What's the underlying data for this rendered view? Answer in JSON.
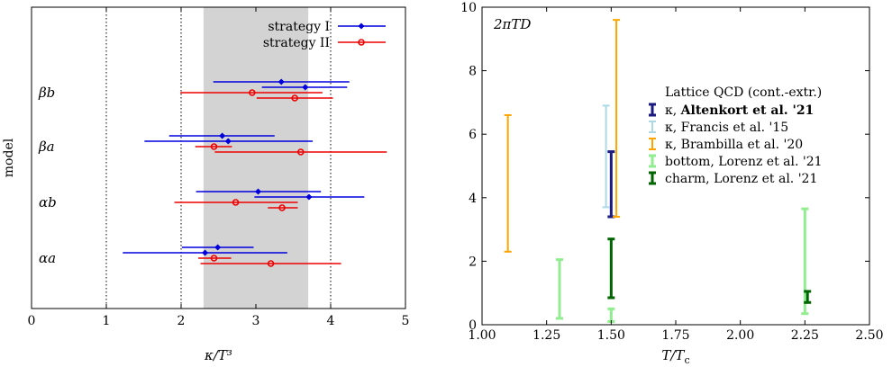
{
  "chart_data": [
    {
      "type": "scatter",
      "title": "",
      "xlabel": "κ/T³",
      "ylabel": "model",
      "xlim": [
        0,
        5
      ],
      "xticks": [
        0,
        1,
        2,
        3,
        4,
        5
      ],
      "categories": [
        "βb",
        "βa",
        "αb",
        "αa"
      ],
      "shaded_band": [
        2.3,
        3.7
      ],
      "reference_lines": [
        1,
        2,
        4
      ],
      "legend": "top-right",
      "series": [
        {
          "name": "strategy I",
          "color": "#0000dd",
          "marker": "diamond",
          "points": [
            {
              "model": "βb",
              "value": 3.34,
              "low": 2.43,
              "high": 4.25
            },
            {
              "model": "βb",
              "value": 3.66,
              "low": 3.08,
              "high": 4.22
            },
            {
              "model": "βa",
              "value": 2.55,
              "low": 1.84,
              "high": 3.25
            },
            {
              "model": "βa",
              "value": 2.63,
              "low": 1.51,
              "high": 3.76
            },
            {
              "model": "αb",
              "value": 3.03,
              "low": 2.2,
              "high": 3.87
            },
            {
              "model": "αb",
              "value": 3.71,
              "low": 2.98,
              "high": 4.45
            },
            {
              "model": "αa",
              "value": 2.49,
              "low": 2.01,
              "high": 2.97
            },
            {
              "model": "αa",
              "value": 2.32,
              "low": 1.22,
              "high": 3.42
            }
          ]
        },
        {
          "name": "strategy II",
          "color": "#ee0000",
          "marker": "circle",
          "points": [
            {
              "model": "βb",
              "value": 2.95,
              "low": 1.99,
              "high": 3.89
            },
            {
              "model": "βb",
              "value": 3.52,
              "low": 3.01,
              "high": 4.03
            },
            {
              "model": "βa",
              "value": 2.44,
              "low": 2.19,
              "high": 2.68
            },
            {
              "model": "βa",
              "value": 3.6,
              "low": 2.45,
              "high": 4.75
            },
            {
              "model": "αb",
              "value": 2.73,
              "low": 1.91,
              "high": 3.56
            },
            {
              "model": "αb",
              "value": 3.35,
              "low": 3.16,
              "high": 3.56
            },
            {
              "model": "αa",
              "value": 2.44,
              "low": 2.23,
              "high": 2.67
            },
            {
              "model": "αa",
              "value": 3.2,
              "low": 2.26,
              "high": 4.14
            }
          ]
        }
      ]
    },
    {
      "type": "errorbar",
      "title": "",
      "annotation": "2πTD",
      "xlabel": "T/T_c",
      "ylabel": "",
      "xlim": [
        1.0,
        2.5
      ],
      "ylim": [
        0,
        10
      ],
      "xticks": [
        1.0,
        1.25,
        1.5,
        1.75,
        2.0,
        2.25,
        2.5
      ],
      "xtick_labels": [
        "1.00",
        "1.25",
        "1.50",
        "1.75",
        "2.00",
        "2.25",
        "2.50"
      ],
      "yticks": [
        0,
        2,
        4,
        6,
        8,
        10
      ],
      "legend": "center-right",
      "legend_title": "Lattice QCD (cont.-extr.)",
      "series": [
        {
          "name_prefix": "κ, ",
          "name_main": "Altenkort et al. '21",
          "bold": true,
          "color": "#1a1a80",
          "width": 3,
          "bars": [
            {
              "x": 1.5,
              "low": 3.4,
              "high": 5.45
            }
          ]
        },
        {
          "name_prefix": "κ, ",
          "name_main": "Francis et al. '15",
          "bold": false,
          "color": "#add8e6",
          "width": 2,
          "bars": [
            {
              "x": 1.48,
              "low": 3.7,
              "high": 6.9
            }
          ]
        },
        {
          "name_prefix": "κ, ",
          "name_main": "Brambilla et al. '20",
          "bold": false,
          "color": "#ffa500",
          "width": 2,
          "bars": [
            {
              "x": 1.1,
              "low": 2.3,
              "high": 6.6
            },
            {
              "x": 1.52,
              "low": 3.4,
              "high": 9.6
            }
          ]
        },
        {
          "name_prefix": "",
          "name_main": "bottom, Lorenz et al. '21",
          "bold": false,
          "color": "#90ee90",
          "width": 3,
          "bars": [
            {
              "x": 1.3,
              "low": 0.2,
              "high": 2.05
            },
            {
              "x": 1.5,
              "low": 0.1,
              "high": 0.5
            },
            {
              "x": 2.25,
              "low": 0.35,
              "high": 3.65
            }
          ]
        },
        {
          "name_prefix": "",
          "name_main": "charm, Lorenz et al. '21",
          "bold": false,
          "color": "#006400",
          "width": 3,
          "bars": [
            {
              "x": 1.5,
              "low": 0.85,
              "high": 2.7
            },
            {
              "x": 2.26,
              "low": 0.7,
              "high": 1.05
            }
          ]
        }
      ]
    }
  ]
}
